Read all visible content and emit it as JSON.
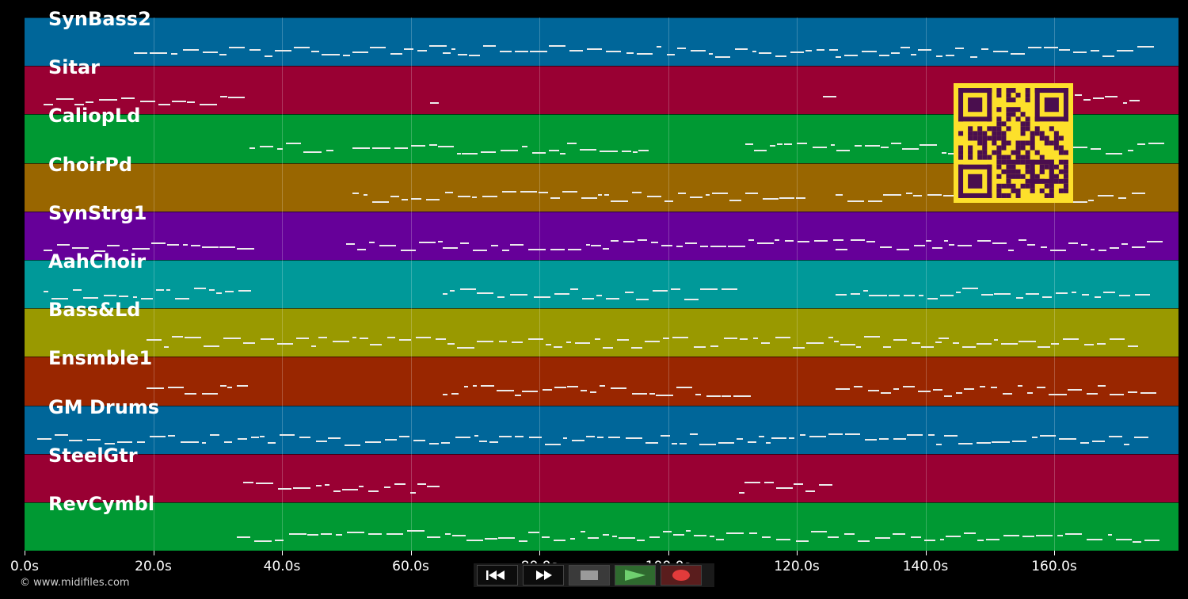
{
  "tracks": [
    {
      "name": "SynBass2",
      "color": "#006699"
    },
    {
      "name": "Sitar",
      "color": "#990033"
    },
    {
      "name": "CaliopLd",
      "color": "#009933"
    },
    {
      "name": "ChoirPd",
      "color": "#996600"
    },
    {
      "name": "SynStrg1",
      "color": "#660099"
    },
    {
      "name": "AahChoir",
      "color": "#009999"
    },
    {
      "name": "Bass&Ld",
      "color": "#999900"
    },
    {
      "name": "Ensmble1",
      "color": "#992600"
    },
    {
      "name": "GM Drums",
      "color": "#006699"
    },
    {
      "name": "SteelGtr",
      "color": "#990033"
    },
    {
      "name": "RevCymbl",
      "color": "#009933"
    }
  ],
  "timeline": {
    "ticks": [
      {
        "seconds": 0,
        "label": "0.0s"
      },
      {
        "seconds": 20,
        "label": "20.0s"
      },
      {
        "seconds": 40,
        "label": "40.0s"
      },
      {
        "seconds": 60,
        "label": "60.0s"
      },
      {
        "seconds": 80,
        "label": "80.0s"
      },
      {
        "seconds": 100,
        "label": "100.0s"
      },
      {
        "seconds": 120,
        "label": "120.0s"
      },
      {
        "seconds": 140,
        "label": "140.0s"
      },
      {
        "seconds": 160,
        "label": "160.0s"
      }
    ]
  },
  "copyright": "© www.midifiles.com",
  "transport": {
    "buttons": [
      {
        "name": "rewind-button",
        "icon": "rewind-icon"
      },
      {
        "name": "fast-forward-button",
        "icon": "fast-forward-icon"
      },
      {
        "name": "stop-button",
        "icon": "stop-icon"
      },
      {
        "name": "play-button",
        "icon": "play-icon"
      },
      {
        "name": "record-button",
        "icon": "record-icon"
      }
    ]
  },
  "qr_code": {
    "icon": "qr-code-icon",
    "color": "#4a0e4e",
    "background": "#fde02b"
  }
}
